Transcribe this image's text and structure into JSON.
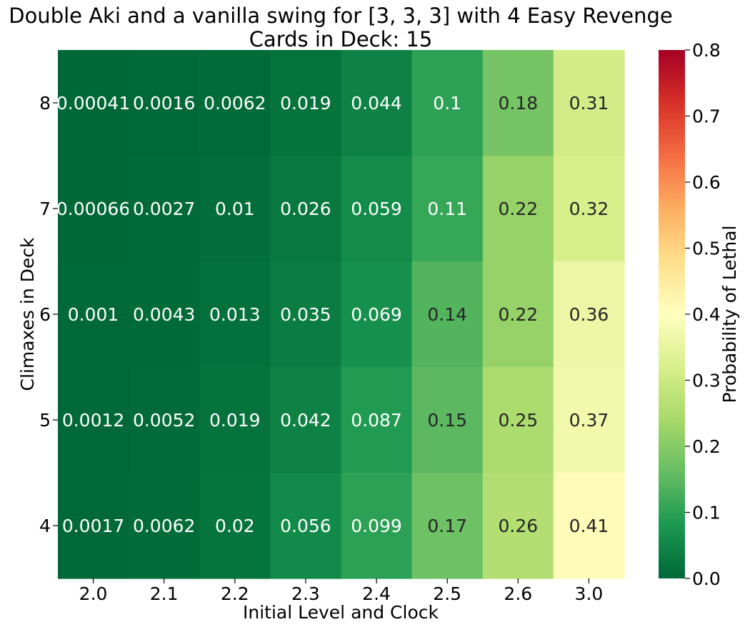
{
  "chart_data": {
    "type": "heatmap",
    "title": "Double Aki and a vanilla swing for [3, 3, 3] with 4 Easy Revenge",
    "subtitle": "Cards in Deck: 15",
    "xlabel": "Initial Level and Clock",
    "ylabel": "Climaxes in Deck",
    "x_categories": [
      "2.0",
      "2.1",
      "2.2",
      "2.3",
      "2.4",
      "2.5",
      "2.6",
      "3.0"
    ],
    "y_categories": [
      "8",
      "7",
      "6",
      "5",
      "4"
    ],
    "values": [
      [
        0.00041,
        0.0016,
        0.0062,
        0.019,
        0.044,
        0.1,
        0.18,
        0.31
      ],
      [
        0.00066,
        0.0027,
        0.01,
        0.026,
        0.059,
        0.11,
        0.22,
        0.32
      ],
      [
        0.001,
        0.0043,
        0.013,
        0.035,
        0.069,
        0.14,
        0.22,
        0.36
      ],
      [
        0.0012,
        0.0052,
        0.019,
        0.042,
        0.087,
        0.15,
        0.25,
        0.37
      ],
      [
        0.0017,
        0.0062,
        0.02,
        0.056,
        0.099,
        0.17,
        0.26,
        0.41
      ]
    ],
    "cell_labels": [
      [
        "0.00041",
        "0.0016",
        "0.0062",
        "0.019",
        "0.044",
        "0.1",
        "0.18",
        "0.31"
      ],
      [
        "0.00066",
        "0.0027",
        "0.01",
        "0.026",
        "0.059",
        "0.11",
        "0.22",
        "0.32"
      ],
      [
        "0.001",
        "0.0043",
        "0.013",
        "0.035",
        "0.069",
        "0.14",
        "0.22",
        "0.36"
      ],
      [
        "0.0012",
        "0.0052",
        "0.019",
        "0.042",
        "0.087",
        "0.15",
        "0.25",
        "0.37"
      ],
      [
        "0.0017",
        "0.0062",
        "0.02",
        "0.056",
        "0.099",
        "0.17",
        "0.26",
        "0.41"
      ]
    ],
    "colorbar": {
      "label": "Probability of Lethal",
      "min": 0.0,
      "max": 0.8,
      "ticks": [
        "0.0",
        "0.1",
        "0.2",
        "0.3",
        "0.4",
        "0.5",
        "0.6",
        "0.7",
        "0.8"
      ],
      "colormap": "RdYlGn_r",
      "colors": [
        "#006837",
        "#1a9850",
        "#66bd63",
        "#a6d96a",
        "#d9ef8b",
        "#ffffbf",
        "#fee08b",
        "#fdae61",
        "#f46d43",
        "#d73027",
        "#a50026"
      ]
    },
    "text_colors": {
      "dark": "#262626",
      "light": "#ffffff"
    }
  }
}
